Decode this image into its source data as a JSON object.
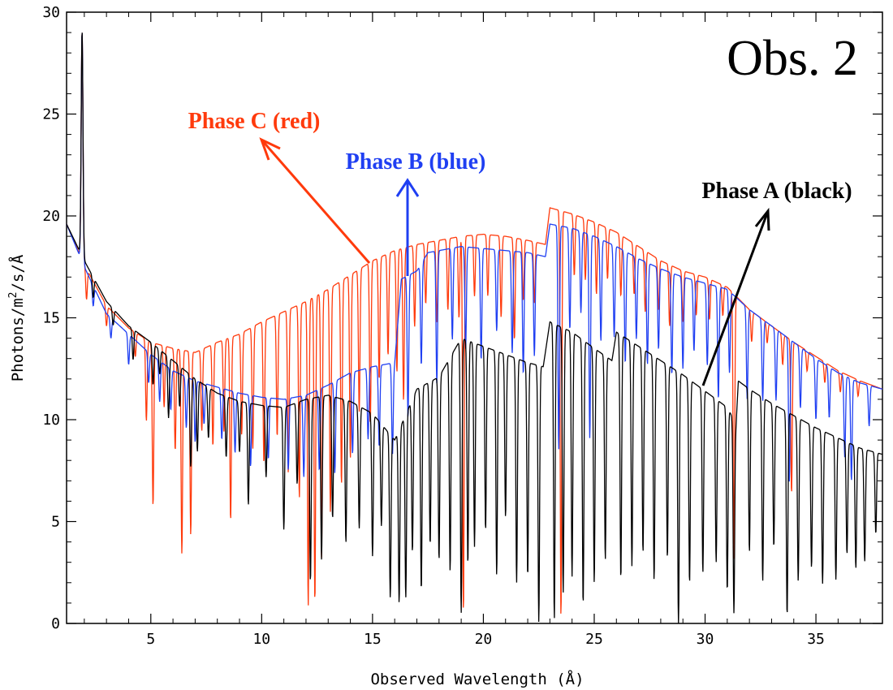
{
  "chart_data": {
    "type": "line",
    "title": "Obs. 2",
    "xlabel": "Observed Wavelength (Å)",
    "ylabel": "Photons/m²/s/Å",
    "ylabel_parts": {
      "pre": "Photons/m",
      "sup": "2",
      "post": "/s/Å"
    },
    "xlim": [
      1.2,
      38
    ],
    "ylim": [
      0,
      30
    ],
    "x_ticks": [
      5,
      10,
      15,
      20,
      25,
      30,
      35
    ],
    "y_ticks": [
      0,
      5,
      10,
      15,
      20,
      25,
      30
    ],
    "grid": false,
    "series": [
      {
        "name": "Phase A (black)",
        "color": "#000000",
        "continuum": [
          [
            1.2,
            19.6
          ],
          [
            2,
            17.8
          ],
          [
            3,
            15.8
          ],
          [
            4,
            14.6
          ],
          [
            5,
            13.8
          ],
          [
            6,
            12.9
          ],
          [
            7,
            12.0
          ],
          [
            8,
            11.3
          ],
          [
            9,
            10.9
          ],
          [
            10,
            10.7
          ],
          [
            11,
            10.6
          ],
          [
            12,
            11.0
          ],
          [
            13,
            11.2
          ],
          [
            14,
            10.9
          ],
          [
            15,
            10.3
          ],
          [
            16,
            9.0
          ],
          [
            17,
            11.5
          ],
          [
            18,
            12.1
          ],
          [
            19,
            14.0
          ],
          [
            20,
            13.6
          ],
          [
            21,
            13.2
          ],
          [
            22,
            12.8
          ],
          [
            22.7,
            12.6
          ],
          [
            23,
            14.8
          ],
          [
            24,
            14.3
          ],
          [
            25,
            13.5
          ],
          [
            25.8,
            12.9
          ],
          [
            26,
            14.3
          ],
          [
            27,
            13.6
          ],
          [
            28,
            12.9
          ],
          [
            29,
            12.2
          ],
          [
            30,
            11.4
          ],
          [
            31,
            10.6
          ],
          [
            31.4,
            9.8
          ],
          [
            31.5,
            11.9
          ],
          [
            32,
            11.5
          ],
          [
            33,
            10.8
          ],
          [
            34,
            10.2
          ],
          [
            35,
            9.6
          ],
          [
            36,
            9.1
          ],
          [
            37,
            8.6
          ],
          [
            38,
            8.3
          ]
        ],
        "absorption_lines": [
          [
            2.4,
            1.0
          ],
          [
            3.3,
            0.8
          ],
          [
            4.2,
            1.5
          ],
          [
            5.1,
            2.0
          ],
          [
            5.4,
            1.2
          ],
          [
            5.8,
            3.0
          ],
          [
            6.3,
            2.0
          ],
          [
            6.8,
            4.5
          ],
          [
            7.1,
            3.5
          ],
          [
            7.6,
            2.5
          ],
          [
            8.4,
            3.0
          ],
          [
            9.0,
            2.5
          ],
          [
            9.4,
            5.0
          ],
          [
            10.2,
            3.5
          ],
          [
            11.0,
            6.0
          ],
          [
            11.6,
            4.0
          ],
          [
            12.2,
            9.0
          ],
          [
            12.7,
            8.0
          ],
          [
            13.2,
            6.0
          ],
          [
            13.8,
            7.0
          ],
          [
            14.4,
            6.0
          ],
          [
            15.0,
            7.0
          ],
          [
            15.4,
            5.0
          ],
          [
            15.8,
            8.0
          ],
          [
            16.2,
            8.5
          ],
          [
            16.5,
            9.0
          ],
          [
            16.8,
            7.5
          ],
          [
            17.2,
            10.0
          ],
          [
            17.6,
            8.0
          ],
          [
            18.0,
            9.0
          ],
          [
            18.5,
            10.5
          ],
          [
            19.0,
            13.5
          ],
          [
            19.3,
            11.0
          ],
          [
            19.6,
            10.0
          ],
          [
            20.1,
            9.0
          ],
          [
            20.6,
            11.0
          ],
          [
            21.0,
            8.0
          ],
          [
            21.5,
            11.0
          ],
          [
            22.0,
            10.5
          ],
          [
            22.5,
            12.6
          ],
          [
            23.2,
            14.5
          ],
          [
            23.6,
            13.0
          ],
          [
            24.0,
            12.0
          ],
          [
            24.5,
            13.0
          ],
          [
            25.0,
            11.5
          ],
          [
            25.5,
            10.0
          ],
          [
            26.2,
            12.0
          ],
          [
            26.7,
            11.0
          ],
          [
            27.2,
            10.0
          ],
          [
            27.7,
            11.0
          ],
          [
            28.3,
            9.5
          ],
          [
            28.8,
            12.5
          ],
          [
            29.3,
            10.0
          ],
          [
            29.9,
            9.0
          ],
          [
            30.5,
            8.0
          ],
          [
            31.0,
            9.0
          ],
          [
            31.3,
            9.5
          ],
          [
            32.0,
            8.0
          ],
          [
            32.6,
            9.0
          ],
          [
            33.1,
            7.0
          ],
          [
            33.7,
            10.0
          ],
          [
            34.2,
            8.0
          ],
          [
            34.8,
            7.0
          ],
          [
            35.3,
            7.5
          ],
          [
            35.9,
            7.0
          ],
          [
            36.4,
            5.5
          ],
          [
            36.8,
            6.0
          ],
          [
            37.2,
            5.5
          ],
          [
            37.7,
            4.0
          ]
        ]
      },
      {
        "name": "Phase B (blue)",
        "color": "#1f3ff2",
        "continuum": [
          [
            1.2,
            19.6
          ],
          [
            2,
            17.5
          ],
          [
            3,
            15.2
          ],
          [
            4,
            14.2
          ],
          [
            5,
            13.2
          ],
          [
            6,
            12.4
          ],
          [
            7,
            11.9
          ],
          [
            8,
            11.6
          ],
          [
            9,
            11.3
          ],
          [
            10,
            11.1
          ],
          [
            11,
            11.0
          ],
          [
            12,
            11.2
          ],
          [
            13,
            11.7
          ],
          [
            14,
            12.3
          ],
          [
            15,
            12.6
          ],
          [
            16,
            12.8
          ],
          [
            16.3,
            16.9
          ],
          [
            17,
            17.3
          ],
          [
            17.5,
            18.2
          ],
          [
            19,
            18.5
          ],
          [
            20,
            18.4
          ],
          [
            21,
            18.3
          ],
          [
            22,
            18.2
          ],
          [
            22.8,
            18.0
          ],
          [
            23,
            19.6
          ],
          [
            24,
            19.4
          ],
          [
            25,
            19.0
          ],
          [
            26,
            18.5
          ],
          [
            27,
            17.9
          ],
          [
            28,
            17.4
          ],
          [
            29,
            17.0
          ],
          [
            30,
            16.7
          ],
          [
            31,
            16.4
          ],
          [
            32,
            15.4
          ],
          [
            33,
            14.6
          ],
          [
            34,
            13.8
          ],
          [
            35,
            13.0
          ],
          [
            36,
            12.3
          ],
          [
            37,
            11.8
          ],
          [
            38,
            11.5
          ]
        ],
        "absorption_lines": [
          [
            2.4,
            1.0
          ],
          [
            3.2,
            1.0
          ],
          [
            4.0,
            1.5
          ],
          [
            4.9,
            1.5
          ],
          [
            5.4,
            2.0
          ],
          [
            5.9,
            2.0
          ],
          [
            6.6,
            2.5
          ],
          [
            7.0,
            3.0
          ],
          [
            7.4,
            2.0
          ],
          [
            8.2,
            2.5
          ],
          [
            8.8,
            3.0
          ],
          [
            9.5,
            3.5
          ],
          [
            10.3,
            3.0
          ],
          [
            11.2,
            3.5
          ],
          [
            11.9,
            4.0
          ],
          [
            12.6,
            4.0
          ],
          [
            13.3,
            4.5
          ],
          [
            14.1,
            4.0
          ],
          [
            14.8,
            3.5
          ],
          [
            15.3,
            4.0
          ],
          [
            15.9,
            4.5
          ],
          [
            16.6,
            7.0
          ],
          [
            17.2,
            5.0
          ],
          [
            17.9,
            6.5
          ],
          [
            18.6,
            4.5
          ],
          [
            19.2,
            5.0
          ],
          [
            19.9,
            5.5
          ],
          [
            20.6,
            4.0
          ],
          [
            21.3,
            5.0
          ],
          [
            21.8,
            6.0
          ],
          [
            22.3,
            5.0
          ],
          [
            23.4,
            11.0
          ],
          [
            23.9,
            5.0
          ],
          [
            24.4,
            4.0
          ],
          [
            24.8,
            10.0
          ],
          [
            25.3,
            5.0
          ],
          [
            25.9,
            4.5
          ],
          [
            26.4,
            5.5
          ],
          [
            26.9,
            4.0
          ],
          [
            27.4,
            5.0
          ],
          [
            27.9,
            4.0
          ],
          [
            28.5,
            5.0
          ],
          [
            29.0,
            4.5
          ],
          [
            29.5,
            3.5
          ],
          [
            30.1,
            4.0
          ],
          [
            30.6,
            5.5
          ],
          [
            31.1,
            4.0
          ],
          [
            31.9,
            4.5
          ],
          [
            32.6,
            4.0
          ],
          [
            33.2,
            3.5
          ],
          [
            33.8,
            7.0
          ],
          [
            34.3,
            3.0
          ],
          [
            35.0,
            3.0
          ],
          [
            35.6,
            2.5
          ],
          [
            36.3,
            4.0
          ],
          [
            36.6,
            5.0
          ],
          [
            37.4,
            2.0
          ]
        ]
      },
      {
        "name": "Phase C (red)",
        "color": "#ff3a0c",
        "continuum": [
          [
            1.2,
            19.6
          ],
          [
            2,
            17.6
          ],
          [
            3,
            15.6
          ],
          [
            4,
            14.5
          ],
          [
            5,
            13.8
          ],
          [
            6,
            13.5
          ],
          [
            7,
            13.3
          ],
          [
            8,
            13.8
          ],
          [
            9,
            14.2
          ],
          [
            10,
            14.8
          ],
          [
            11,
            15.3
          ],
          [
            12,
            15.8
          ],
          [
            13,
            16.4
          ],
          [
            14,
            17.1
          ],
          [
            15,
            17.8
          ],
          [
            16,
            18.3
          ],
          [
            17,
            18.6
          ],
          [
            18,
            18.8
          ],
          [
            19,
            19.0
          ],
          [
            20,
            19.1
          ],
          [
            21,
            19.0
          ],
          [
            22,
            18.8
          ],
          [
            22.8,
            18.6
          ],
          [
            23,
            20.4
          ],
          [
            24,
            20.1
          ],
          [
            25,
            19.7
          ],
          [
            26,
            19.2
          ],
          [
            27,
            18.5
          ],
          [
            28,
            17.8
          ],
          [
            29,
            17.3
          ],
          [
            30,
            17.0
          ],
          [
            31,
            16.5
          ],
          [
            32,
            15.4
          ],
          [
            33,
            14.6
          ],
          [
            34,
            13.8
          ],
          [
            35,
            13.1
          ],
          [
            36,
            12.4
          ],
          [
            37,
            11.9
          ],
          [
            38,
            11.5
          ]
        ],
        "absorption_lines": [
          [
            2.1,
            1.5
          ],
          [
            3.0,
            1.0
          ],
          [
            4.3,
            1.2
          ],
          [
            4.8,
            4.0
          ],
          [
            5.1,
            8.0
          ],
          [
            5.6,
            3.0
          ],
          [
            6.1,
            5.0
          ],
          [
            6.4,
            10.0
          ],
          [
            6.8,
            9.0
          ],
          [
            7.3,
            4.0
          ],
          [
            7.8,
            5.0
          ],
          [
            8.3,
            4.5
          ],
          [
            8.6,
            9.0
          ],
          [
            9.1,
            5.0
          ],
          [
            9.6,
            6.0
          ],
          [
            10.1,
            7.0
          ],
          [
            10.7,
            6.0
          ],
          [
            11.2,
            8.0
          ],
          [
            11.7,
            9.5
          ],
          [
            12.1,
            15.0
          ],
          [
            12.4,
            15.0
          ],
          [
            12.7,
            13.0
          ],
          [
            13.1,
            11.0
          ],
          [
            13.6,
            10.0
          ],
          [
            14.0,
            9.0
          ],
          [
            14.4,
            7.0
          ],
          [
            14.9,
            8.0
          ],
          [
            15.3,
            6.0
          ],
          [
            15.7,
            5.0
          ],
          [
            16.1,
            6.0
          ],
          [
            16.4,
            7.5
          ],
          [
            16.9,
            4.0
          ],
          [
            17.4,
            3.0
          ],
          [
            17.9,
            4.0
          ],
          [
            18.4,
            3.5
          ],
          [
            18.9,
            4.0
          ],
          [
            19.1,
            18.5
          ],
          [
            19.6,
            3.0
          ],
          [
            20.2,
            3.0
          ],
          [
            20.8,
            4.0
          ],
          [
            21.4,
            5.0
          ],
          [
            21.8,
            3.0
          ],
          [
            22.3,
            3.0
          ],
          [
            23.5,
            20.0
          ],
          [
            24.1,
            3.0
          ],
          [
            24.6,
            3.0
          ],
          [
            25.1,
            3.5
          ],
          [
            25.6,
            2.5
          ],
          [
            26.2,
            3.0
          ],
          [
            26.8,
            2.5
          ],
          [
            27.3,
            3.0
          ],
          [
            27.9,
            2.5
          ],
          [
            28.4,
            3.0
          ],
          [
            29.0,
            2.5
          ],
          [
            29.6,
            2.0
          ],
          [
            30.2,
            2.0
          ],
          [
            30.8,
            1.5
          ],
          [
            31.3,
            13.0
          ],
          [
            32.1,
            1.5
          ],
          [
            32.8,
            1.0
          ],
          [
            33.5,
            1.5
          ],
          [
            33.9,
            7.5
          ],
          [
            34.6,
            1.0
          ],
          [
            35.4,
            1.0
          ],
          [
            36.1,
            1.0
          ],
          [
            36.9,
            0.8
          ]
        ]
      }
    ],
    "emission_line": {
      "x": 1.9,
      "peak": 29.1
    },
    "annotations": [
      {
        "text": "Phase C (red)",
        "color": "#ff3a0c",
        "key": "phase_c"
      },
      {
        "text": "Phase B (blue)",
        "color": "#1f3ff2",
        "key": "phase_b"
      },
      {
        "text": "Phase A (black)",
        "color": "#000000",
        "key": "phase_a"
      }
    ]
  }
}
